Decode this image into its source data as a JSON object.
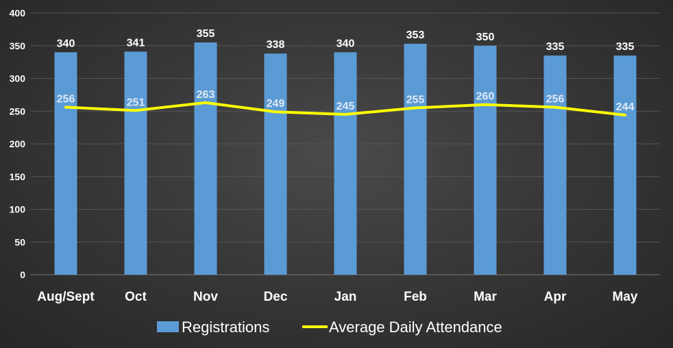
{
  "chart_data": {
    "type": "bar",
    "title": "",
    "xlabel": "",
    "ylabel": "",
    "categories": [
      "Aug/Sept",
      "Oct",
      "Nov",
      "Dec",
      "Jan",
      "Feb",
      "Mar",
      "Apr",
      "May"
    ],
    "ylim": [
      0,
      400
    ],
    "yticks": [
      0,
      50,
      100,
      150,
      200,
      250,
      300,
      350,
      400
    ],
    "grid": true,
    "legend_position": "bottom",
    "series": [
      {
        "name": "Registrations",
        "type": "bar",
        "color": "#5b9bd5",
        "values": [
          340,
          341,
          355,
          338,
          340,
          353,
          350,
          335,
          335
        ]
      },
      {
        "name": "Average Daily Attendance",
        "type": "line",
        "color": "#ffff00",
        "values": [
          256,
          251,
          263,
          249,
          245,
          255,
          260,
          256,
          244
        ]
      }
    ]
  }
}
